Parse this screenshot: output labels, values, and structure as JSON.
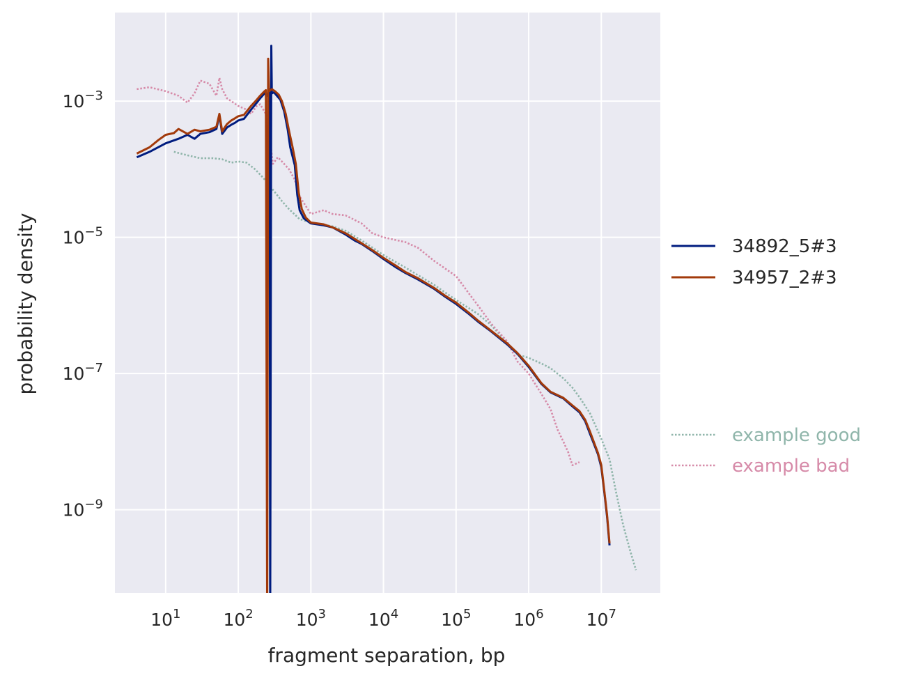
{
  "chart_data": {
    "type": "line",
    "xscale": "log",
    "yscale": "log",
    "xlabel": "fragment separation, bp",
    "ylabel": "probability density",
    "xlim": [
      2,
      65000000
    ],
    "ylim": [
      6e-11,
      0.02
    ],
    "grid": true,
    "legend_position": "right",
    "x_ticks": [
      {
        "value": 10,
        "base": "10",
        "exp": "1"
      },
      {
        "value": 100,
        "base": "10",
        "exp": "2"
      },
      {
        "value": 1000,
        "base": "10",
        "exp": "3"
      },
      {
        "value": 10000,
        "base": "10",
        "exp": "4"
      },
      {
        "value": 100000,
        "base": "10",
        "exp": "5"
      },
      {
        "value": 1000000,
        "base": "10",
        "exp": "6"
      },
      {
        "value": 10000000,
        "base": "10",
        "exp": "7"
      }
    ],
    "y_ticks": [
      {
        "value": 0.001,
        "base": "10",
        "exp": "−3"
      },
      {
        "value": 1e-05,
        "base": "10",
        "exp": "−5"
      },
      {
        "value": 1e-07,
        "base": "10",
        "exp": "−7"
      },
      {
        "value": 1e-09,
        "base": "10",
        "exp": "−9"
      }
    ],
    "series": [
      {
        "name": "34892_5#3",
        "color": "#001c7f",
        "style": "solid",
        "points": [
          [
            4,
            0.00015
          ],
          [
            6,
            0.00018
          ],
          [
            10,
            0.00024
          ],
          [
            15,
            0.00028
          ],
          [
            20,
            0.00032
          ],
          [
            25,
            0.00028
          ],
          [
            30,
            0.00033
          ],
          [
            40,
            0.00035
          ],
          [
            50,
            0.00039
          ],
          [
            55,
            0.00062
          ],
          [
            60,
            0.00033
          ],
          [
            70,
            0.00041
          ],
          [
            80,
            0.00045
          ],
          [
            90,
            0.00048
          ],
          [
            100,
            0.00052
          ],
          [
            120,
            0.00055
          ],
          [
            150,
            0.00075
          ],
          [
            180,
            0.00095
          ],
          [
            200,
            0.0011
          ],
          [
            230,
            0.0013
          ],
          [
            250,
            0.0012
          ],
          [
            260,
            0.0014
          ],
          [
            270,
            0.0015
          ],
          [
            275,
            2e-11
          ],
          [
            285,
            0.0065
          ],
          [
            290,
            0.0013
          ],
          [
            310,
            0.00135
          ],
          [
            340,
            0.0012
          ],
          [
            380,
            0.00105
          ],
          [
            430,
            0.0007
          ],
          [
            480,
            0.00038
          ],
          [
            520,
            0.00021
          ],
          [
            600,
            0.000115
          ],
          [
            650,
            4.2e-05
          ],
          [
            700,
            2.5e-05
          ],
          [
            800,
            1.9e-05
          ],
          [
            1000,
            1.6e-05
          ],
          [
            1500,
            1.5e-05
          ],
          [
            2000,
            1.4e-05
          ],
          [
            3000,
            1.1e-05
          ],
          [
            4000,
            9e-06
          ],
          [
            5000,
            8e-06
          ],
          [
            7000,
            6.3e-06
          ],
          [
            10000,
            4.8e-06
          ],
          [
            15000,
            3.6e-06
          ],
          [
            20000,
            3e-06
          ],
          [
            30000,
            2.4e-06
          ],
          [
            50000,
            1.75e-06
          ],
          [
            70000,
            1.35e-06
          ],
          [
            100000,
            1.05e-06
          ],
          [
            150000,
            7.5e-07
          ],
          [
            200000,
            5.8e-07
          ],
          [
            300000,
            4.2e-07
          ],
          [
            500000,
            2.7e-07
          ],
          [
            700000,
            1.95e-07
          ],
          [
            1000000,
            1.25e-07
          ],
          [
            1500000,
            7e-08
          ],
          [
            2000000,
            5.3e-08
          ],
          [
            3000000,
            4.3e-08
          ],
          [
            4000000,
            3.3e-08
          ],
          [
            5000000,
            2.7e-08
          ],
          [
            6000000,
            2e-08
          ],
          [
            7000000,
            1.3e-08
          ],
          [
            8000000,
            9e-09
          ],
          [
            9000000,
            6.5e-09
          ],
          [
            10000000,
            4.2e-09
          ],
          [
            11000000,
            1.8e-09
          ],
          [
            12000000,
            8e-10
          ],
          [
            13000000,
            3e-10
          ]
        ]
      },
      {
        "name": "34957_2#3",
        "color": "#a23a0b",
        "style": "solid",
        "points": [
          [
            4,
            0.00017
          ],
          [
            6,
            0.00021
          ],
          [
            8,
            0.00027
          ],
          [
            10,
            0.00032
          ],
          [
            13,
            0.00034
          ],
          [
            15,
            0.00039
          ],
          [
            20,
            0.00033
          ],
          [
            25,
            0.00038
          ],
          [
            30,
            0.00036
          ],
          [
            40,
            0.00038
          ],
          [
            50,
            0.00042
          ],
          [
            55,
            0.00065
          ],
          [
            60,
            0.00036
          ],
          [
            70,
            0.00046
          ],
          [
            80,
            0.00052
          ],
          [
            90,
            0.00056
          ],
          [
            100,
            0.0006
          ],
          [
            120,
            0.00063
          ],
          [
            150,
            0.00085
          ],
          [
            180,
            0.00105
          ],
          [
            200,
            0.0012
          ],
          [
            230,
            0.0014
          ],
          [
            240,
            0.00145
          ],
          [
            250,
            2e-11
          ],
          [
            258,
            0.0042
          ],
          [
            265,
            0.0014
          ],
          [
            290,
            0.0015
          ],
          [
            320,
            0.0014
          ],
          [
            360,
            0.00125
          ],
          [
            400,
            0.001
          ],
          [
            450,
            0.00065
          ],
          [
            500,
            0.00037
          ],
          [
            560,
            0.00021
          ],
          [
            620,
            0.00012
          ],
          [
            680,
            4.5e-05
          ],
          [
            750,
            2.6e-05
          ],
          [
            850,
            1.95e-05
          ],
          [
            1000,
            1.65e-05
          ],
          [
            1500,
            1.55e-05
          ],
          [
            2000,
            1.4e-05
          ],
          [
            3000,
            1.15e-05
          ],
          [
            4000,
            9.5e-06
          ],
          [
            5000,
            8.2e-06
          ],
          [
            7000,
            6.5e-06
          ],
          [
            10000,
            5e-06
          ],
          [
            15000,
            3.8e-06
          ],
          [
            20000,
            3.1e-06
          ],
          [
            30000,
            2.5e-06
          ],
          [
            50000,
            1.8e-06
          ],
          [
            70000,
            1.4e-06
          ],
          [
            100000,
            1.1e-06
          ],
          [
            150000,
            7.8e-07
          ],
          [
            200000,
            6e-07
          ],
          [
            300000,
            4.3e-07
          ],
          [
            500000,
            2.8e-07
          ],
          [
            700000,
            2e-07
          ],
          [
            1000000,
            1.3e-07
          ],
          [
            1500000,
            7.2e-08
          ],
          [
            2000000,
            5.4e-08
          ],
          [
            3000000,
            4.4e-08
          ],
          [
            4000000,
            3.4e-08
          ],
          [
            5000000,
            2.8e-08
          ],
          [
            6000000,
            2.1e-08
          ],
          [
            7000000,
            1.4e-08
          ],
          [
            8000000,
            9.5e-09
          ],
          [
            9000000,
            6.8e-09
          ],
          [
            10000000,
            4.5e-09
          ],
          [
            11000000,
            1.9e-09
          ],
          [
            12000000,
            8.5e-10
          ],
          [
            13000000,
            3.2e-10
          ]
        ]
      },
      {
        "name": "example good",
        "color": "#8fb5aa",
        "style": "dotted",
        "points": [
          [
            13,
            0.00018
          ],
          [
            20,
            0.00016
          ],
          [
            30,
            0.000145
          ],
          [
            45,
            0.000145
          ],
          [
            60,
            0.00014
          ],
          [
            80,
            0.000125
          ],
          [
            100,
            0.00013
          ],
          [
            130,
            0.000125
          ],
          [
            170,
            0.0001
          ],
          [
            220,
            7.5e-05
          ],
          [
            300,
            5e-05
          ],
          [
            400,
            3.4e-05
          ],
          [
            500,
            2.6e-05
          ],
          [
            700,
            1.85e-05
          ],
          [
            1000,
            1.65e-05
          ],
          [
            2000,
            1.45e-05
          ],
          [
            3000,
            1.25e-05
          ],
          [
            5000,
            9e-06
          ],
          [
            10000,
            5.5e-06
          ],
          [
            20000,
            3.6e-06
          ],
          [
            50000,
            2e-06
          ],
          [
            100000,
            1.2e-06
          ],
          [
            200000,
            7.5e-07
          ],
          [
            300000,
            5.2e-07
          ],
          [
            500000,
            2.9e-07
          ],
          [
            700000,
            1.9e-07
          ],
          [
            1000000,
            1.7e-07
          ],
          [
            1500000,
            1.4e-07
          ],
          [
            2000000,
            1.2e-07
          ],
          [
            3000000,
            8.5e-08
          ],
          [
            4000000,
            6.2e-08
          ],
          [
            5000000,
            4.5e-08
          ],
          [
            7000000,
            2.6e-08
          ],
          [
            10000000,
            1.1e-08
          ],
          [
            13000000,
            5.5e-09
          ],
          [
            16000000,
            1.8e-09
          ],
          [
            20000000,
            6e-10
          ],
          [
            25000000,
            2.5e-10
          ],
          [
            30000000,
            1.3e-10
          ]
        ]
      },
      {
        "name": "example bad",
        "color": "#d68aa8",
        "style": "dotted",
        "points": [
          [
            4,
            0.0015
          ],
          [
            6,
            0.0016
          ],
          [
            10,
            0.0014
          ],
          [
            15,
            0.0012
          ],
          [
            20,
            0.00095
          ],
          [
            25,
            0.0013
          ],
          [
            30,
            0.002
          ],
          [
            40,
            0.0018
          ],
          [
            50,
            0.0012
          ],
          [
            55,
            0.0022
          ],
          [
            60,
            0.0015
          ],
          [
            70,
            0.0011
          ],
          [
            80,
            0.001
          ],
          [
            100,
            0.00085
          ],
          [
            130,
            0.00075
          ],
          [
            150,
            0.00065
          ],
          [
            180,
            0.00085
          ],
          [
            200,
            0.0009
          ],
          [
            250,
            0.0006
          ],
          [
            300,
            0.00012
          ],
          [
            350,
            0.00015
          ],
          [
            400,
            0.00013
          ],
          [
            500,
            0.0001
          ],
          [
            600,
            7e-05
          ],
          [
            700,
            4e-05
          ],
          [
            1000,
            2.2e-05
          ],
          [
            1500,
            2.5e-05
          ],
          [
            2000,
            2.2e-05
          ],
          [
            3000,
            2.1e-05
          ],
          [
            5000,
            1.6e-05
          ],
          [
            7000,
            1.15e-05
          ],
          [
            10000,
            1e-05
          ],
          [
            20000,
            8.5e-06
          ],
          [
            30000,
            7e-06
          ],
          [
            50000,
            4.5e-06
          ],
          [
            70000,
            3.5e-06
          ],
          [
            100000,
            2.7e-06
          ],
          [
            150000,
            1.5e-06
          ],
          [
            200000,
            1e-06
          ],
          [
            300000,
            5.5e-07
          ],
          [
            500000,
            3e-07
          ],
          [
            700000,
            1.5e-07
          ],
          [
            1000000,
            1e-07
          ],
          [
            1500000,
            5e-08
          ],
          [
            2000000,
            3e-08
          ],
          [
            2500000,
            1.5e-08
          ],
          [
            3000000,
            1e-08
          ],
          [
            3500000,
            7e-09
          ],
          [
            4000000,
            4.5e-09
          ],
          [
            5000000,
            5e-09
          ]
        ]
      }
    ]
  }
}
